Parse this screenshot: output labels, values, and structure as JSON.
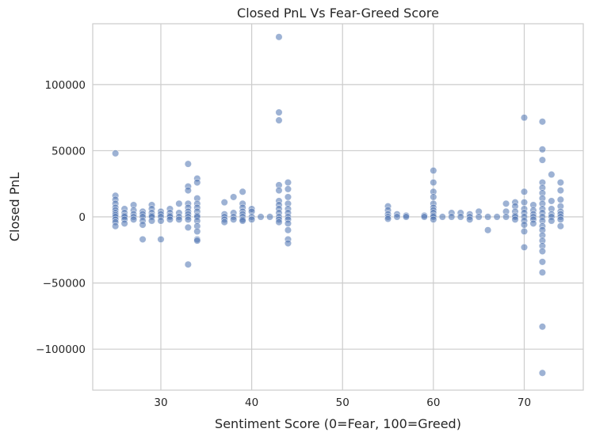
{
  "chart_data": {
    "type": "scatter",
    "title": "Closed PnL Vs Fear-Greed Score",
    "xlabel": "Sentiment Score (0=Fear, 100=Greed)",
    "ylabel": "Closed PnL",
    "xlim": [
      22.5,
      76.5
    ],
    "ylim": [
      -131000,
      146000
    ],
    "x_ticks": [
      30,
      40,
      50,
      60,
      70
    ],
    "x_tick_labels": [
      "30",
      "40",
      "50",
      "60",
      "70"
    ],
    "y_ticks": [
      -100000,
      -50000,
      0,
      50000,
      100000
    ],
    "y_tick_labels": [
      "−100000",
      "−50000",
      "0",
      "50000",
      "100000"
    ],
    "grid": true,
    "background": "#ffffff",
    "grid_color": "#cccccc",
    "point_color": "#4c72b0",
    "points": [
      {
        "x": 25,
        "y": 48000
      },
      {
        "x": 25,
        "y": 16000
      },
      {
        "x": 25,
        "y": 13000
      },
      {
        "x": 25,
        "y": 10000
      },
      {
        "x": 25,
        "y": 7000
      },
      {
        "x": 25,
        "y": 5000
      },
      {
        "x": 25,
        "y": 3000
      },
      {
        "x": 25,
        "y": 1500
      },
      {
        "x": 25,
        "y": 0
      },
      {
        "x": 25,
        "y": -2000
      },
      {
        "x": 25,
        "y": -4000
      },
      {
        "x": 25,
        "y": -7000
      },
      {
        "x": 26,
        "y": 6000
      },
      {
        "x": 26,
        "y": 3000
      },
      {
        "x": 26,
        "y": 1000
      },
      {
        "x": 26,
        "y": 0
      },
      {
        "x": 26,
        "y": -2000
      },
      {
        "x": 26,
        "y": -5000
      },
      {
        "x": 27,
        "y": 9000
      },
      {
        "x": 27,
        "y": 5000
      },
      {
        "x": 27,
        "y": 2000
      },
      {
        "x": 27,
        "y": 0
      },
      {
        "x": 27,
        "y": -2000
      },
      {
        "x": 28,
        "y": 4000
      },
      {
        "x": 28,
        "y": 2000
      },
      {
        "x": 28,
        "y": 0
      },
      {
        "x": 28,
        "y": -3000
      },
      {
        "x": 28,
        "y": -6000
      },
      {
        "x": 28,
        "y": -17000
      },
      {
        "x": 29,
        "y": 9000
      },
      {
        "x": 29,
        "y": 6000
      },
      {
        "x": 29,
        "y": 3000
      },
      {
        "x": 29,
        "y": 1000
      },
      {
        "x": 29,
        "y": 0
      },
      {
        "x": 29,
        "y": -3000
      },
      {
        "x": 30,
        "y": 4000
      },
      {
        "x": 30,
        "y": 2000
      },
      {
        "x": 30,
        "y": 0
      },
      {
        "x": 30,
        "y": -3000
      },
      {
        "x": 30,
        "y": -17000
      },
      {
        "x": 31,
        "y": 6000
      },
      {
        "x": 31,
        "y": 3000
      },
      {
        "x": 31,
        "y": 1000
      },
      {
        "x": 31,
        "y": 0
      },
      {
        "x": 31,
        "y": -2000
      },
      {
        "x": 32,
        "y": 10000
      },
      {
        "x": 32,
        "y": 3000
      },
      {
        "x": 32,
        "y": 0
      },
      {
        "x": 32,
        "y": -2000
      },
      {
        "x": 33,
        "y": 40000
      },
      {
        "x": 33,
        "y": 23000
      },
      {
        "x": 33,
        "y": 20000
      },
      {
        "x": 33,
        "y": 10000
      },
      {
        "x": 33,
        "y": 7000
      },
      {
        "x": 33,
        "y": 4000
      },
      {
        "x": 33,
        "y": 2000
      },
      {
        "x": 33,
        "y": 0
      },
      {
        "x": 33,
        "y": -2000
      },
      {
        "x": 33,
        "y": -8000
      },
      {
        "x": 33,
        "y": -36000
      },
      {
        "x": 34,
        "y": 29000
      },
      {
        "x": 34,
        "y": 26000
      },
      {
        "x": 34,
        "y": 14000
      },
      {
        "x": 34,
        "y": 10000
      },
      {
        "x": 34,
        "y": 7000
      },
      {
        "x": 34,
        "y": 4000
      },
      {
        "x": 34,
        "y": 1000
      },
      {
        "x": 34,
        "y": 0
      },
      {
        "x": 34,
        "y": -3000
      },
      {
        "x": 34,
        "y": -7000
      },
      {
        "x": 34,
        "y": -11000
      },
      {
        "x": 34,
        "y": -17000
      },
      {
        "x": 34,
        "y": -18000
      },
      {
        "x": 37,
        "y": 11000
      },
      {
        "x": 37,
        "y": 2000
      },
      {
        "x": 37,
        "y": 0
      },
      {
        "x": 37,
        "y": -2000
      },
      {
        "x": 37,
        "y": -4000
      },
      {
        "x": 38,
        "y": 15000
      },
      {
        "x": 38,
        "y": 3000
      },
      {
        "x": 38,
        "y": 0
      },
      {
        "x": 38,
        "y": -2000
      },
      {
        "x": 39,
        "y": 19000
      },
      {
        "x": 39,
        "y": 10000
      },
      {
        "x": 39,
        "y": 7000
      },
      {
        "x": 39,
        "y": 4000
      },
      {
        "x": 39,
        "y": 2000
      },
      {
        "x": 39,
        "y": 0
      },
      {
        "x": 39,
        "y": -2000
      },
      {
        "x": 39,
        "y": -3000
      },
      {
        "x": 40,
        "y": 6000
      },
      {
        "x": 40,
        "y": 4000
      },
      {
        "x": 40,
        "y": 0
      },
      {
        "x": 40,
        "y": -2000
      },
      {
        "x": 41,
        "y": 0
      },
      {
        "x": 42,
        "y": 0
      },
      {
        "x": 43,
        "y": 136000
      },
      {
        "x": 43,
        "y": 79000
      },
      {
        "x": 43,
        "y": 73000
      },
      {
        "x": 43,
        "y": 24000
      },
      {
        "x": 43,
        "y": 20000
      },
      {
        "x": 43,
        "y": 12000
      },
      {
        "x": 43,
        "y": 9000
      },
      {
        "x": 43,
        "y": 6000
      },
      {
        "x": 43,
        "y": 3000
      },
      {
        "x": 43,
        "y": 0
      },
      {
        "x": 43,
        "y": -2000
      },
      {
        "x": 43,
        "y": -4000
      },
      {
        "x": 44,
        "y": 26000
      },
      {
        "x": 44,
        "y": 21000
      },
      {
        "x": 44,
        "y": 15000
      },
      {
        "x": 44,
        "y": 10000
      },
      {
        "x": 44,
        "y": 6000
      },
      {
        "x": 44,
        "y": 3000
      },
      {
        "x": 44,
        "y": 0
      },
      {
        "x": 44,
        "y": -2000
      },
      {
        "x": 44,
        "y": -5000
      },
      {
        "x": 44,
        "y": -10000
      },
      {
        "x": 44,
        "y": -17000
      },
      {
        "x": 44,
        "y": -20000
      },
      {
        "x": 55,
        "y": 8000
      },
      {
        "x": 55,
        "y": 5000
      },
      {
        "x": 55,
        "y": 2000
      },
      {
        "x": 55,
        "y": 0
      },
      {
        "x": 55,
        "y": -1500
      },
      {
        "x": 56,
        "y": 2000
      },
      {
        "x": 56,
        "y": 0
      },
      {
        "x": 57,
        "y": 1000
      },
      {
        "x": 57,
        "y": 0
      },
      {
        "x": 59,
        "y": 1000
      },
      {
        "x": 59,
        "y": 0
      },
      {
        "x": 60,
        "y": 35000
      },
      {
        "x": 60,
        "y": 26000
      },
      {
        "x": 60,
        "y": 19000
      },
      {
        "x": 60,
        "y": 15000
      },
      {
        "x": 60,
        "y": 10000
      },
      {
        "x": 60,
        "y": 7000
      },
      {
        "x": 60,
        "y": 5000
      },
      {
        "x": 60,
        "y": 3000
      },
      {
        "x": 60,
        "y": 1000
      },
      {
        "x": 60,
        "y": 0
      },
      {
        "x": 60,
        "y": -2000
      },
      {
        "x": 61,
        "y": 0
      },
      {
        "x": 62,
        "y": 3000
      },
      {
        "x": 62,
        "y": 0
      },
      {
        "x": 63,
        "y": 3000
      },
      {
        "x": 63,
        "y": 0
      },
      {
        "x": 64,
        "y": 2000
      },
      {
        "x": 64,
        "y": 0
      },
      {
        "x": 64,
        "y": -2000
      },
      {
        "x": 65,
        "y": 4000
      },
      {
        "x": 65,
        "y": 0
      },
      {
        "x": 66,
        "y": 0
      },
      {
        "x": 66,
        "y": -10000
      },
      {
        "x": 67,
        "y": 0
      },
      {
        "x": 68,
        "y": 10000
      },
      {
        "x": 68,
        "y": 4000
      },
      {
        "x": 68,
        "y": 0
      },
      {
        "x": 69,
        "y": 11000
      },
      {
        "x": 69,
        "y": 8000
      },
      {
        "x": 69,
        "y": 4000
      },
      {
        "x": 69,
        "y": 1000
      },
      {
        "x": 69,
        "y": 0
      },
      {
        "x": 69,
        "y": -2000
      },
      {
        "x": 70,
        "y": 75000
      },
      {
        "x": 70,
        "y": 19000
      },
      {
        "x": 70,
        "y": 11000
      },
      {
        "x": 70,
        "y": 6000
      },
      {
        "x": 70,
        "y": 3000
      },
      {
        "x": 70,
        "y": 0
      },
      {
        "x": 70,
        "y": -3000
      },
      {
        "x": 70,
        "y": -6000
      },
      {
        "x": 70,
        "y": -11000
      },
      {
        "x": 70,
        "y": -23000
      },
      {
        "x": 71,
        "y": 9000
      },
      {
        "x": 71,
        "y": 5000
      },
      {
        "x": 71,
        "y": 2000
      },
      {
        "x": 71,
        "y": 0
      },
      {
        "x": 71,
        "y": -2000
      },
      {
        "x": 71,
        "y": -5000
      },
      {
        "x": 72,
        "y": 72000
      },
      {
        "x": 72,
        "y": 51000
      },
      {
        "x": 72,
        "y": 43000
      },
      {
        "x": 72,
        "y": 26000
      },
      {
        "x": 72,
        "y": 22000
      },
      {
        "x": 72,
        "y": 18000
      },
      {
        "x": 72,
        "y": 14000
      },
      {
        "x": 72,
        "y": 10000
      },
      {
        "x": 72,
        "y": 6000
      },
      {
        "x": 72,
        "y": 3000
      },
      {
        "x": 72,
        "y": 0
      },
      {
        "x": 72,
        "y": -3000
      },
      {
        "x": 72,
        "y": -7000
      },
      {
        "x": 72,
        "y": -10000
      },
      {
        "x": 72,
        "y": -14000
      },
      {
        "x": 72,
        "y": -18000
      },
      {
        "x": 72,
        "y": -22000
      },
      {
        "x": 72,
        "y": -26000
      },
      {
        "x": 72,
        "y": -34000
      },
      {
        "x": 72,
        "y": -42000
      },
      {
        "x": 72,
        "y": -83000
      },
      {
        "x": 72,
        "y": -118000
      },
      {
        "x": 73,
        "y": 32000
      },
      {
        "x": 73,
        "y": 12000
      },
      {
        "x": 73,
        "y": 6000
      },
      {
        "x": 73,
        "y": 2000
      },
      {
        "x": 73,
        "y": 0
      },
      {
        "x": 73,
        "y": -3000
      },
      {
        "x": 74,
        "y": 26000
      },
      {
        "x": 74,
        "y": 20000
      },
      {
        "x": 74,
        "y": 13000
      },
      {
        "x": 74,
        "y": 8000
      },
      {
        "x": 74,
        "y": 4000
      },
      {
        "x": 74,
        "y": 2000
      },
      {
        "x": 74,
        "y": 0
      },
      {
        "x": 74,
        "y": -2000
      },
      {
        "x": 74,
        "y": -7000
      }
    ]
  }
}
